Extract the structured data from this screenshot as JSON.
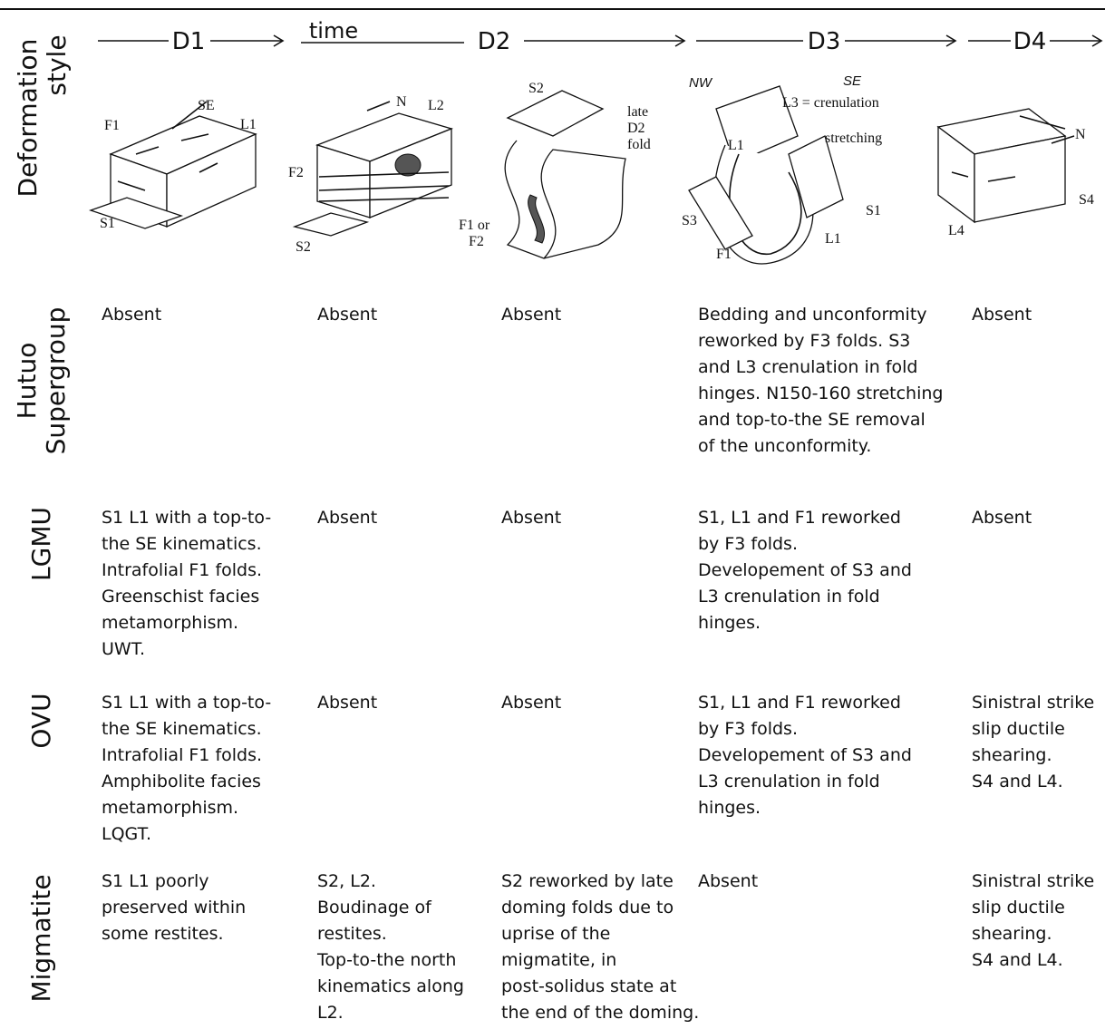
{
  "header": {
    "row_label": [
      "Deformation",
      "style"
    ],
    "time_label": "time",
    "phases": [
      "D1",
      "D2",
      "D3",
      "D4"
    ]
  },
  "sketches": [
    {
      "labels": [
        "F1",
        "SE",
        "L1",
        "S1"
      ]
    },
    {
      "labels": [
        "N",
        "L2",
        "F2",
        "S2"
      ]
    },
    {
      "labels": [
        "S2",
        "late",
        "D2",
        "fold",
        "F1 or",
        "F2"
      ]
    },
    {
      "labels": [
        "NW",
        "SE",
        "L3 = crenulation",
        "stretching",
        "L1",
        "S3",
        "S1",
        "L1",
        "F1"
      ]
    },
    {
      "labels": [
        "N",
        "S4",
        "L4"
      ]
    }
  ],
  "rows": [
    {
      "label": [
        "Hutuo",
        "Supergroup"
      ],
      "cells": [
        [
          "Absent"
        ],
        [
          "Absent"
        ],
        [
          "Absent"
        ],
        [
          "Bedding and unconformity",
          "reworked by F3 folds.  S3",
          "and L3 crenulation in fold",
          "hinges. N150-160 stretching",
          "and top-to-the SE removal",
          "of the unconformity."
        ],
        [
          "Absent"
        ]
      ]
    },
    {
      "label": [
        "LGMU"
      ],
      "cells": [
        [
          "S1 L1 with a top-to-",
          "the SE kinematics.",
          "Intrafolial F1 folds.",
          "Greenschist facies",
          "metamorphism.",
          "UWT."
        ],
        [
          "Absent"
        ],
        [
          "Absent"
        ],
        [
          "S1, L1 and F1 reworked",
          "by F3 folds.",
          "Developement of S3 and",
          "L3 crenulation in fold",
          "hinges."
        ],
        [
          "Absent"
        ]
      ]
    },
    {
      "label": [
        "OVU"
      ],
      "cells": [
        [
          "S1 L1 with a top-to-",
          "the SE kinematics.",
          "Intrafolial F1 folds.",
          "Amphibolite facies",
          "metamorphism.",
          "LQGT."
        ],
        [
          "Absent"
        ],
        [
          "Absent"
        ],
        [
          "S1, L1 and F1 reworked",
          "by F3 folds.",
          "Developement of S3 and",
          "L3 crenulation in fold",
          "hinges."
        ],
        [
          "Sinistral strike",
          "slip ductile",
          "shearing.",
          "S4 and L4."
        ]
      ]
    },
    {
      "label": [
        "Migmatite"
      ],
      "cells": [
        [
          "S1 L1 poorly",
          "preserved within",
          "some restites."
        ],
        [
          "S2, L2.",
          "Boudinage of",
          "restites.",
          "Top-to-the north",
          "kinematics along",
          "L2."
        ],
        [
          "S2 reworked by late",
          "doming folds due to",
          "uprise of the",
          "migmatite, in",
          "post-solidus state at",
          "the end of the doming."
        ],
        [
          "Absent"
        ],
        [
          "Sinistral strike",
          "slip ductile",
          "shearing.",
          "S4 and L4."
        ]
      ]
    }
  ]
}
